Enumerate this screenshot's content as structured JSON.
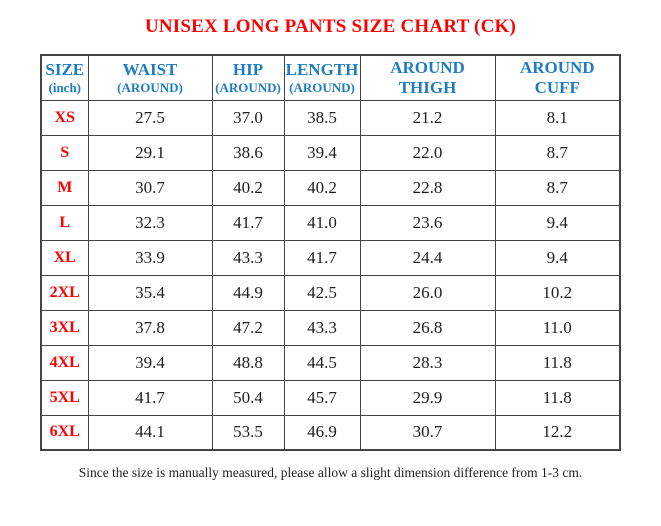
{
  "title": "UNISEX LONG PANTS SIZE CHART (CK)",
  "footer_note": "Since the size is manually measured, please allow a slight dimension difference from 1-3 cm.",
  "colors": {
    "title_red": "#fe0000",
    "header_blue": "#1e7dc2",
    "size_label_red": "#fe0000",
    "value_dark": "#1f1f1f",
    "border_gray": "#444444"
  },
  "table": {
    "headers": [
      {
        "id": "size",
        "line1": "SIZE",
        "line2": "(inch)",
        "line2_small": true
      },
      {
        "id": "waist",
        "line1": "WAIST",
        "line2": "(AROUND)",
        "line2_small": true
      },
      {
        "id": "hip",
        "line1": "HIP",
        "line2": "(AROUND)",
        "line2_small": true
      },
      {
        "id": "length",
        "line1": "LENGTH",
        "line2": "(AROUND)",
        "line2_small": true
      },
      {
        "id": "around-thigh",
        "line1": "AROUND",
        "line2": "THIGH",
        "line2_small": false
      },
      {
        "id": "around-cuff",
        "line1": "AROUND",
        "line2": "CUFF",
        "line2_small": false
      }
    ],
    "rows": [
      {
        "size": "XS",
        "values": [
          "27.5",
          "37.0",
          "38.5",
          "21.2",
          "8.1"
        ]
      },
      {
        "size": "S",
        "values": [
          "29.1",
          "38.6",
          "39.4",
          "22.0",
          "8.7"
        ]
      },
      {
        "size": "M",
        "values": [
          "30.7",
          "40.2",
          "40.2",
          "22.8",
          "8.7"
        ]
      },
      {
        "size": "L",
        "values": [
          "32.3",
          "41.7",
          "41.0",
          "23.6",
          "9.4"
        ]
      },
      {
        "size": "XL",
        "values": [
          "33.9",
          "43.3",
          "41.7",
          "24.4",
          "9.4"
        ]
      },
      {
        "size": "2XL",
        "values": [
          "35.4",
          "44.9",
          "42.5",
          "26.0",
          "10.2"
        ]
      },
      {
        "size": "3XL",
        "values": [
          "37.8",
          "47.2",
          "43.3",
          "26.8",
          "11.0"
        ]
      },
      {
        "size": "4XL",
        "values": [
          "39.4",
          "48.8",
          "44.5",
          "28.3",
          "11.8"
        ]
      },
      {
        "size": "5XL",
        "values": [
          "41.7",
          "50.4",
          "45.7",
          "29.9",
          "11.8"
        ]
      },
      {
        "size": "6XL",
        "values": [
          "44.1",
          "53.5",
          "46.9",
          "30.7",
          "12.2"
        ]
      }
    ]
  }
}
